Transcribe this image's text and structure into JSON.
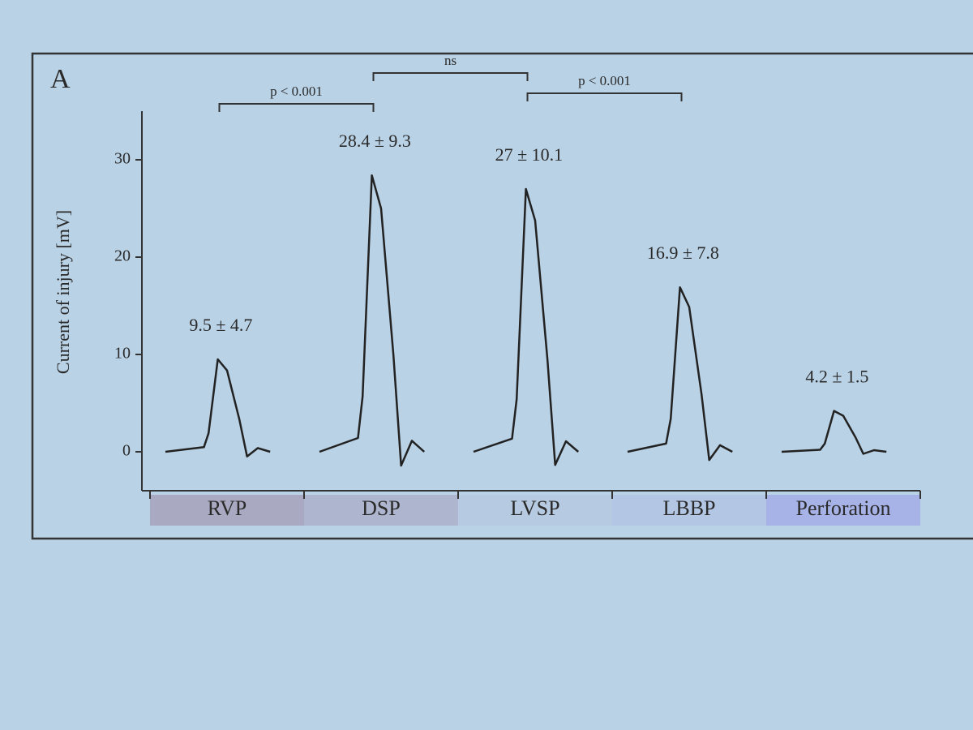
{
  "chart_data": {
    "type": "waveform",
    "panel_label": "A",
    "y_label": "Current of injury [mV]",
    "categories": [
      "RVP",
      "DSP",
      "LVSP",
      "LBBP",
      "Perforation"
    ],
    "category_colors": [
      "#a9a9c2",
      "#aeb6cf",
      "#b6cbe1",
      "#b3c7e5",
      "#a7b3e6"
    ],
    "values": [
      9.5,
      28.4,
      27,
      16.9,
      4.2
    ],
    "value_labels": [
      "9.5 ± 4.7",
      "28.4 ± 9.3",
      "27 ± 10.1",
      "16.9 ± 7.8",
      "4.2 ± 1.5"
    ],
    "color": "#222222",
    "ylim": [
      -4,
      35
    ],
    "yticks": [
      0,
      10,
      20,
      30
    ],
    "comparisons": [
      {
        "pair": [
          0,
          1
        ],
        "label": "p < 0.001"
      },
      {
        "pair": [
          1,
          2
        ],
        "label": "ns"
      },
      {
        "pair": [
          2,
          3
        ],
        "label": "p < 0.001"
      }
    ]
  }
}
